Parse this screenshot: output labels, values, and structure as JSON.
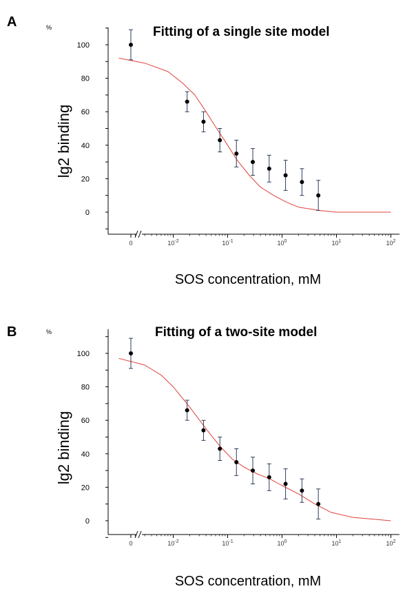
{
  "chart_data": [
    {
      "panel": "A",
      "type": "scatter",
      "title": "Fitting of a single site model",
      "ylabel": "lg2 binding",
      "y_unit": "%",
      "xlabel": "SOS concentration, mM",
      "x_scale": "log",
      "xlim": [
        0.001,
        100
      ],
      "ylim": [
        -5,
        115
      ],
      "y_ticks": [
        "0",
        "20",
        "40",
        "60",
        "80",
        "100"
      ],
      "x_ticks": [
        "0",
        "10-2",
        "10-1",
        "100",
        "101",
        "102"
      ],
      "series": [
        {
          "points": [
            {
              "x": 0,
              "y": 100,
              "err": 9
            },
            {
              "x": 0.018,
              "y": 66,
              "err": 6
            },
            {
              "x": 0.036,
              "y": 54,
              "err": 6
            },
            {
              "x": 0.072,
              "y": 43,
              "err": 7
            },
            {
              "x": 0.145,
              "y": 35,
              "err": 8
            },
            {
              "x": 0.29,
              "y": 30,
              "err": 8
            },
            {
              "x": 0.58,
              "y": 26,
              "err": 8
            },
            {
              "x": 1.16,
              "y": 22,
              "err": 9
            },
            {
              "x": 2.32,
              "y": 18,
              "err": 8
            },
            {
              "x": 4.64,
              "y": 10,
              "err": 9
            }
          ]
        }
      ],
      "fit_curve": {
        "color": "#e0403a",
        "points": [
          [
            0.001,
            92
          ],
          [
            0.003,
            89
          ],
          [
            0.008,
            84
          ],
          [
            0.015,
            77
          ],
          [
            0.025,
            70
          ],
          [
            0.04,
            60
          ],
          [
            0.06,
            51
          ],
          [
            0.1,
            40
          ],
          [
            0.15,
            31
          ],
          [
            0.25,
            22
          ],
          [
            0.4,
            15
          ],
          [
            0.7,
            10
          ],
          [
            1.2,
            6
          ],
          [
            2,
            3
          ],
          [
            5,
            1
          ],
          [
            10,
            0
          ],
          [
            100,
            0
          ]
        ]
      }
    },
    {
      "panel": "B",
      "type": "scatter",
      "title": "Fitting of a two-site model",
      "ylabel": "lg2 binding",
      "y_unit": "%",
      "xlabel": "SOS concentration, mM",
      "x_scale": "log",
      "xlim": [
        0.001,
        100
      ],
      "ylim": [
        -5,
        115
      ],
      "y_ticks": [
        "0",
        "20",
        "40",
        "60",
        "80",
        "100"
      ],
      "x_ticks": [
        "0",
        "10-2",
        "10-1",
        "100",
        "101",
        "102"
      ],
      "series": [
        {
          "points": [
            {
              "x": 0,
              "y": 100,
              "err": 9
            },
            {
              "x": 0.018,
              "y": 66,
              "err": 6
            },
            {
              "x": 0.036,
              "y": 54,
              "err": 6
            },
            {
              "x": 0.072,
              "y": 43,
              "err": 7
            },
            {
              "x": 0.145,
              "y": 35,
              "err": 8
            },
            {
              "x": 0.29,
              "y": 30,
              "err": 8
            },
            {
              "x": 0.58,
              "y": 26,
              "err": 8
            },
            {
              "x": 1.16,
              "y": 22,
              "err": 9
            },
            {
              "x": 2.32,
              "y": 18,
              "err": 7
            },
            {
              "x": 4.64,
              "y": 10,
              "err": 9
            }
          ]
        }
      ],
      "fit_curve": {
        "color": "#e0403a",
        "points": [
          [
            0.001,
            97
          ],
          [
            0.003,
            93
          ],
          [
            0.006,
            87
          ],
          [
            0.01,
            80
          ],
          [
            0.02,
            68
          ],
          [
            0.04,
            55
          ],
          [
            0.07,
            45
          ],
          [
            0.12,
            37
          ],
          [
            0.2,
            32
          ],
          [
            0.35,
            28
          ],
          [
            0.6,
            25
          ],
          [
            1,
            21
          ],
          [
            2,
            16
          ],
          [
            4,
            10
          ],
          [
            8,
            5
          ],
          [
            20,
            2
          ],
          [
            100,
            0
          ]
        ]
      }
    }
  ]
}
